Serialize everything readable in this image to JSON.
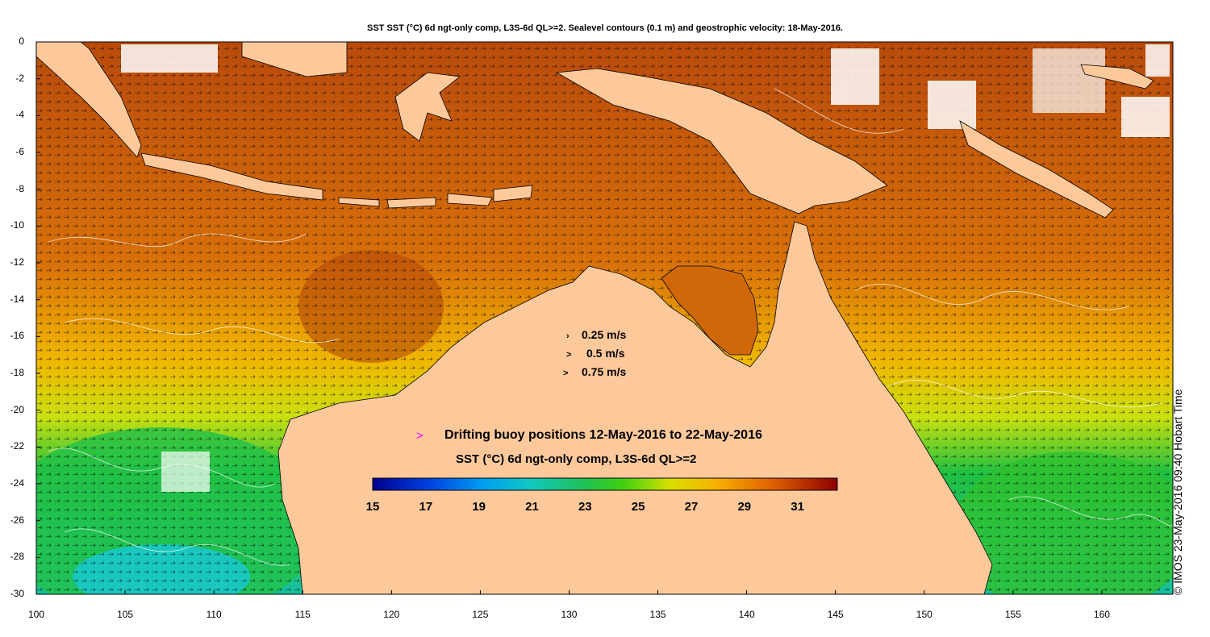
{
  "title": "SST SST (°C) 6d ngt-only comp, L3S-6d QL>=2. Sealevel contours (0.1 m) and geostrophic velocity: 18-May-2016.",
  "axes": {
    "y_labels": [
      "0",
      "-2",
      "-4",
      "-6",
      "-8",
      "-10",
      "-12",
      "-14",
      "-16",
      "-18",
      "-20",
      "-22",
      "-24",
      "-26",
      "-28",
      "-30"
    ],
    "x_labels": [
      "100",
      "105",
      "110",
      "115",
      "120",
      "125",
      "130",
      "135",
      "140",
      "145",
      "150",
      "155",
      "160"
    ],
    "lat_range": [
      -30,
      0
    ],
    "lon_range": [
      100,
      164
    ]
  },
  "velocity_legend": [
    {
      "glyph": "›",
      "label": "0.25 m/s"
    },
    {
      "glyph": ">",
      "label": "0.5 m/s"
    },
    {
      "glyph": ">",
      "label": "0.75 m/s"
    }
  ],
  "buoy_legend": {
    "symbol": ">",
    "text": "Drifting buoy positions 12-May-2016 to 22-May-2016",
    "color": "#ff00ff"
  },
  "colorbar": {
    "title": "SST (°C) 6d ngt-only comp, L3S-6d QL>=2",
    "ticks": [
      "15",
      "17",
      "19",
      "21",
      "23",
      "25",
      "27",
      "29",
      "31"
    ],
    "range": [
      15,
      32.5
    ]
  },
  "credit": "© IMOS 23-May-2016 09:40 Hobart Time",
  "colors": {
    "land": "#fdc99b",
    "sst_warm": "#c2500a",
    "sst_mid": "#e8a000",
    "sst_cool": "#22c040",
    "sst_cold": "#10c8d0",
    "contour": "#ffffff",
    "coastline": "#000000"
  }
}
